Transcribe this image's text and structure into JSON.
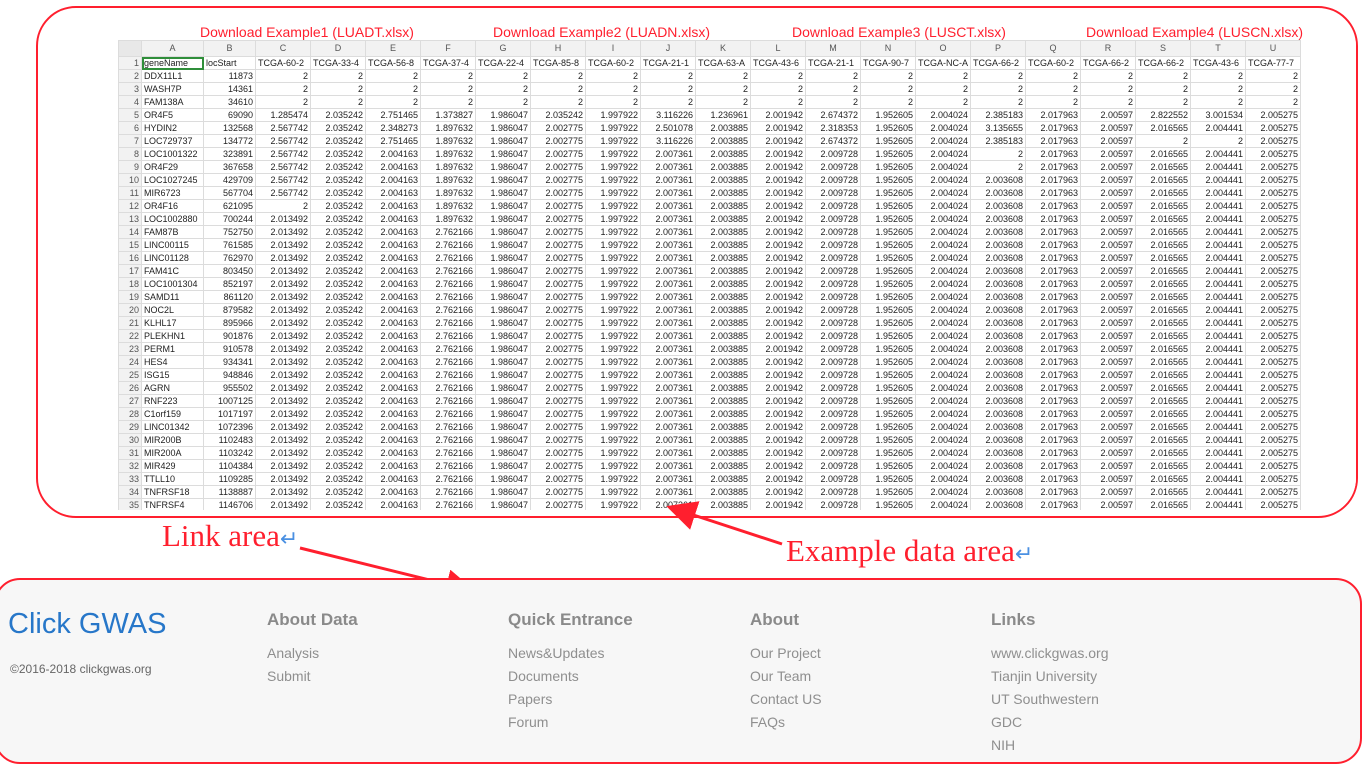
{
  "downloads": [
    "Download Example1 (LUADT.xlsx)",
    "Download Example2 (LUADN.xlsx)",
    "Download Example3 (LUSCT.xlsx)",
    "Download Example4 (LUSCN.xlsx)"
  ],
  "sheet": {
    "columns": [
      "A",
      "B",
      "C",
      "D",
      "E",
      "F",
      "G",
      "H",
      "I",
      "J",
      "K",
      "L",
      "M",
      "N",
      "O",
      "P",
      "Q",
      "R",
      "S",
      "T",
      "U"
    ],
    "header_row": [
      "geneName",
      "locStart",
      "TCGA-60-2",
      "TCGA-33-4",
      "TCGA-56-8",
      "TCGA-37-4",
      "TCGA-22-4",
      "TCGA-85-8",
      "TCGA-60-2",
      "TCGA-21-1",
      "TCGA-63-A",
      "TCGA-43-6",
      "TCGA-21-1",
      "TCGA-90-7",
      "TCGA-NC-A",
      "TCGA-66-2",
      "TCGA-60-2",
      "TCGA-66-2",
      "TCGA-66-2",
      "TCGA-43-6",
      "TCGA-77-7"
    ],
    "rows": [
      [
        "DDX11L1",
        "11873",
        "2",
        "2",
        "2",
        "2",
        "2",
        "2",
        "2",
        "2",
        "2",
        "2",
        "2",
        "2",
        "2",
        "2",
        "2",
        "2",
        "2",
        "2",
        "2"
      ],
      [
        "WASH7P",
        "14361",
        "2",
        "2",
        "2",
        "2",
        "2",
        "2",
        "2",
        "2",
        "2",
        "2",
        "2",
        "2",
        "2",
        "2",
        "2",
        "2",
        "2",
        "2",
        "2"
      ],
      [
        "FAM138A",
        "34610",
        "2",
        "2",
        "2",
        "2",
        "2",
        "2",
        "2",
        "2",
        "2",
        "2",
        "2",
        "2",
        "2",
        "2",
        "2",
        "2",
        "2",
        "2",
        "2"
      ],
      [
        "OR4F5",
        "69090",
        "1.285474",
        "2.035242",
        "2.751465",
        "1.373827",
        "1.986047",
        "2.035242",
        "1.997922",
        "3.116226",
        "1.236961",
        "2.001942",
        "2.674372",
        "1.952605",
        "2.004024",
        "2.385183",
        "2.017963",
        "2.00597",
        "2.822552",
        "3.001534",
        "2.005275"
      ],
      [
        "HYDIN2",
        "132568",
        "2.567742",
        "2.035242",
        "2.348273",
        "1.897632",
        "1.986047",
        "2.002775",
        "1.997922",
        "2.501078",
        "2.003885",
        "2.001942",
        "2.318353",
        "1.952605",
        "2.004024",
        "3.135655",
        "2.017963",
        "2.00597",
        "2.016565",
        "2.004441",
        "2.005275"
      ],
      [
        "LOC729737",
        "134772",
        "2.567742",
        "2.035242",
        "2.751465",
        "1.897632",
        "1.986047",
        "2.002775",
        "1.997922",
        "3.116226",
        "2.003885",
        "2.001942",
        "2.674372",
        "1.952605",
        "2.004024",
        "2.385183",
        "2.017963",
        "2.00597",
        "2",
        "2",
        "2.005275"
      ],
      [
        "LOC1001322",
        "323891",
        "2.567742",
        "2.035242",
        "2.004163",
        "1.897632",
        "1.986047",
        "2.002775",
        "1.997922",
        "2.007361",
        "2.003885",
        "2.001942",
        "2.009728",
        "1.952605",
        "2.004024",
        "2",
        "2.017963",
        "2.00597",
        "2.016565",
        "2.004441",
        "2.005275"
      ],
      [
        "OR4F29",
        "367658",
        "2.567742",
        "2.035242",
        "2.004163",
        "1.897632",
        "1.986047",
        "2.002775",
        "1.997922",
        "2.007361",
        "2.003885",
        "2.001942",
        "2.009728",
        "1.952605",
        "2.004024",
        "2",
        "2.017963",
        "2.00597",
        "2.016565",
        "2.004441",
        "2.005275"
      ],
      [
        "LOC1027245",
        "429709",
        "2.567742",
        "2.035242",
        "2.004163",
        "1.897632",
        "1.986047",
        "2.002775",
        "1.997922",
        "2.007361",
        "2.003885",
        "2.001942",
        "2.009728",
        "1.952605",
        "2.004024",
        "2.003608",
        "2.017963",
        "2.00597",
        "2.016565",
        "2.004441",
        "2.005275"
      ],
      [
        "MIR6723",
        "567704",
        "2.567742",
        "2.035242",
        "2.004163",
        "1.897632",
        "1.986047",
        "2.002775",
        "1.997922",
        "2.007361",
        "2.003885",
        "2.001942",
        "2.009728",
        "1.952605",
        "2.004024",
        "2.003608",
        "2.017963",
        "2.00597",
        "2.016565",
        "2.004441",
        "2.005275"
      ],
      [
        "OR4F16",
        "621095",
        "2",
        "2.035242",
        "2.004163",
        "1.897632",
        "1.986047",
        "2.002775",
        "1.997922",
        "2.007361",
        "2.003885",
        "2.001942",
        "2.009728",
        "1.952605",
        "2.004024",
        "2.003608",
        "2.017963",
        "2.00597",
        "2.016565",
        "2.004441",
        "2.005275"
      ],
      [
        "LOC1002880",
        "700244",
        "2.013492",
        "2.035242",
        "2.004163",
        "1.897632",
        "1.986047",
        "2.002775",
        "1.997922",
        "2.007361",
        "2.003885",
        "2.001942",
        "2.009728",
        "1.952605",
        "2.004024",
        "2.003608",
        "2.017963",
        "2.00597",
        "2.016565",
        "2.004441",
        "2.005275"
      ],
      [
        "FAM87B",
        "752750",
        "2.013492",
        "2.035242",
        "2.004163",
        "2.762166",
        "1.986047",
        "2.002775",
        "1.997922",
        "2.007361",
        "2.003885",
        "2.001942",
        "2.009728",
        "1.952605",
        "2.004024",
        "2.003608",
        "2.017963",
        "2.00597",
        "2.016565",
        "2.004441",
        "2.005275"
      ],
      [
        "LINC00115",
        "761585",
        "2.013492",
        "2.035242",
        "2.004163",
        "2.762166",
        "1.986047",
        "2.002775",
        "1.997922",
        "2.007361",
        "2.003885",
        "2.001942",
        "2.009728",
        "1.952605",
        "2.004024",
        "2.003608",
        "2.017963",
        "2.00597",
        "2.016565",
        "2.004441",
        "2.005275"
      ],
      [
        "LINC01128",
        "762970",
        "2.013492",
        "2.035242",
        "2.004163",
        "2.762166",
        "1.986047",
        "2.002775",
        "1.997922",
        "2.007361",
        "2.003885",
        "2.001942",
        "2.009728",
        "1.952605",
        "2.004024",
        "2.003608",
        "2.017963",
        "2.00597",
        "2.016565",
        "2.004441",
        "2.005275"
      ],
      [
        "FAM41C",
        "803450",
        "2.013492",
        "2.035242",
        "2.004163",
        "2.762166",
        "1.986047",
        "2.002775",
        "1.997922",
        "2.007361",
        "2.003885",
        "2.001942",
        "2.009728",
        "1.952605",
        "2.004024",
        "2.003608",
        "2.017963",
        "2.00597",
        "2.016565",
        "2.004441",
        "2.005275"
      ],
      [
        "LOC1001304",
        "852197",
        "2.013492",
        "2.035242",
        "2.004163",
        "2.762166",
        "1.986047",
        "2.002775",
        "1.997922",
        "2.007361",
        "2.003885",
        "2.001942",
        "2.009728",
        "1.952605",
        "2.004024",
        "2.003608",
        "2.017963",
        "2.00597",
        "2.016565",
        "2.004441",
        "2.005275"
      ],
      [
        "SAMD11",
        "861120",
        "2.013492",
        "2.035242",
        "2.004163",
        "2.762166",
        "1.986047",
        "2.002775",
        "1.997922",
        "2.007361",
        "2.003885",
        "2.001942",
        "2.009728",
        "1.952605",
        "2.004024",
        "2.003608",
        "2.017963",
        "2.00597",
        "2.016565",
        "2.004441",
        "2.005275"
      ],
      [
        "NOC2L",
        "879582",
        "2.013492",
        "2.035242",
        "2.004163",
        "2.762166",
        "1.986047",
        "2.002775",
        "1.997922",
        "2.007361",
        "2.003885",
        "2.001942",
        "2.009728",
        "1.952605",
        "2.004024",
        "2.003608",
        "2.017963",
        "2.00597",
        "2.016565",
        "2.004441",
        "2.005275"
      ],
      [
        "KLHL17",
        "895966",
        "2.013492",
        "2.035242",
        "2.004163",
        "2.762166",
        "1.986047",
        "2.002775",
        "1.997922",
        "2.007361",
        "2.003885",
        "2.001942",
        "2.009728",
        "1.952605",
        "2.004024",
        "2.003608",
        "2.017963",
        "2.00597",
        "2.016565",
        "2.004441",
        "2.005275"
      ],
      [
        "PLEKHN1",
        "901876",
        "2.013492",
        "2.035242",
        "2.004163",
        "2.762166",
        "1.986047",
        "2.002775",
        "1.997922",
        "2.007361",
        "2.003885",
        "2.001942",
        "2.009728",
        "1.952605",
        "2.004024",
        "2.003608",
        "2.017963",
        "2.00597",
        "2.016565",
        "2.004441",
        "2.005275"
      ],
      [
        "PERM1",
        "910578",
        "2.013492",
        "2.035242",
        "2.004163",
        "2.762166",
        "1.986047",
        "2.002775",
        "1.997922",
        "2.007361",
        "2.003885",
        "2.001942",
        "2.009728",
        "1.952605",
        "2.004024",
        "2.003608",
        "2.017963",
        "2.00597",
        "2.016565",
        "2.004441",
        "2.005275"
      ],
      [
        "HES4",
        "934341",
        "2.013492",
        "2.035242",
        "2.004163",
        "2.762166",
        "1.986047",
        "2.002775",
        "1.997922",
        "2.007361",
        "2.003885",
        "2.001942",
        "2.009728",
        "1.952605",
        "2.004024",
        "2.003608",
        "2.017963",
        "2.00597",
        "2.016565",
        "2.004441",
        "2.005275"
      ],
      [
        "ISG15",
        "948846",
        "2.013492",
        "2.035242",
        "2.004163",
        "2.762166",
        "1.986047",
        "2.002775",
        "1.997922",
        "2.007361",
        "2.003885",
        "2.001942",
        "2.009728",
        "1.952605",
        "2.004024",
        "2.003608",
        "2.017963",
        "2.00597",
        "2.016565",
        "2.004441",
        "2.005275"
      ],
      [
        "AGRN",
        "955502",
        "2.013492",
        "2.035242",
        "2.004163",
        "2.762166",
        "1.986047",
        "2.002775",
        "1.997922",
        "2.007361",
        "2.003885",
        "2.001942",
        "2.009728",
        "1.952605",
        "2.004024",
        "2.003608",
        "2.017963",
        "2.00597",
        "2.016565",
        "2.004441",
        "2.005275"
      ],
      [
        "RNF223",
        "1007125",
        "2.013492",
        "2.035242",
        "2.004163",
        "2.762166",
        "1.986047",
        "2.002775",
        "1.997922",
        "2.007361",
        "2.003885",
        "2.001942",
        "2.009728",
        "1.952605",
        "2.004024",
        "2.003608",
        "2.017963",
        "2.00597",
        "2.016565",
        "2.004441",
        "2.005275"
      ],
      [
        "C1orf159",
        "1017197",
        "2.013492",
        "2.035242",
        "2.004163",
        "2.762166",
        "1.986047",
        "2.002775",
        "1.997922",
        "2.007361",
        "2.003885",
        "2.001942",
        "2.009728",
        "1.952605",
        "2.004024",
        "2.003608",
        "2.017963",
        "2.00597",
        "2.016565",
        "2.004441",
        "2.005275"
      ],
      [
        "LINC01342",
        "1072396",
        "2.013492",
        "2.035242",
        "2.004163",
        "2.762166",
        "1.986047",
        "2.002775",
        "1.997922",
        "2.007361",
        "2.003885",
        "2.001942",
        "2.009728",
        "1.952605",
        "2.004024",
        "2.003608",
        "2.017963",
        "2.00597",
        "2.016565",
        "2.004441",
        "2.005275"
      ],
      [
        "MIR200B",
        "1102483",
        "2.013492",
        "2.035242",
        "2.004163",
        "2.762166",
        "1.986047",
        "2.002775",
        "1.997922",
        "2.007361",
        "2.003885",
        "2.001942",
        "2.009728",
        "1.952605",
        "2.004024",
        "2.003608",
        "2.017963",
        "2.00597",
        "2.016565",
        "2.004441",
        "2.005275"
      ],
      [
        "MIR200A",
        "1103242",
        "2.013492",
        "2.035242",
        "2.004163",
        "2.762166",
        "1.986047",
        "2.002775",
        "1.997922",
        "2.007361",
        "2.003885",
        "2.001942",
        "2.009728",
        "1.952605",
        "2.004024",
        "2.003608",
        "2.017963",
        "2.00597",
        "2.016565",
        "2.004441",
        "2.005275"
      ],
      [
        "MIR429",
        "1104384",
        "2.013492",
        "2.035242",
        "2.004163",
        "2.762166",
        "1.986047",
        "2.002775",
        "1.997922",
        "2.007361",
        "2.003885",
        "2.001942",
        "2.009728",
        "1.952605",
        "2.004024",
        "2.003608",
        "2.017963",
        "2.00597",
        "2.016565",
        "2.004441",
        "2.005275"
      ],
      [
        "TTLL10",
        "1109285",
        "2.013492",
        "2.035242",
        "2.004163",
        "2.762166",
        "1.986047",
        "2.002775",
        "1.997922",
        "2.007361",
        "2.003885",
        "2.001942",
        "2.009728",
        "1.952605",
        "2.004024",
        "2.003608",
        "2.017963",
        "2.00597",
        "2.016565",
        "2.004441",
        "2.005275"
      ],
      [
        "TNFRSF18",
        "1138887",
        "2.013492",
        "2.035242",
        "2.004163",
        "2.762166",
        "1.986047",
        "2.002775",
        "1.997922",
        "2.007361",
        "2.003885",
        "2.001942",
        "2.009728",
        "1.952605",
        "2.004024",
        "2.003608",
        "2.017963",
        "2.00597",
        "2.016565",
        "2.004441",
        "2.005275"
      ],
      [
        "TNFRSF4",
        "1146706",
        "2.013492",
        "2.035242",
        "2.004163",
        "2.762166",
        "1.986047",
        "2.002775",
        "1.997922",
        "2.007361",
        "2.003885",
        "2.001942",
        "2.009728",
        "1.952605",
        "2.004024",
        "2.003608",
        "2.017963",
        "2.00597",
        "2.016565",
        "2.004441",
        "2.005275"
      ]
    ]
  },
  "annotations": {
    "link_area": "Link area",
    "example_data_area": "Example data area",
    "return_glyph": "↵"
  },
  "footer": {
    "brand": "Click GWAS",
    "copyright": "©2016-2018 clickgwas.org",
    "columns": [
      {
        "title": "About Data",
        "links": [
          "Analysis",
          "Submit"
        ]
      },
      {
        "title": "Quick Entrance",
        "links": [
          "News&Updates",
          "Documents",
          "Papers",
          "Forum"
        ]
      },
      {
        "title": "About",
        "links": [
          "Our Project",
          "Our Team",
          "Contact US",
          "FAQs"
        ]
      },
      {
        "title": "Links",
        "links": [
          "www.clickgwas.org",
          "Tianjin University",
          "UT Southwestern",
          "GDC",
          "NIH"
        ]
      }
    ]
  },
  "colors": {
    "annotation_red": "#ff1f2e",
    "brand_blue": "#2777c9",
    "return_glyph_blue": "#4a90e2",
    "selected_cell_green": "#2f8e3a"
  }
}
